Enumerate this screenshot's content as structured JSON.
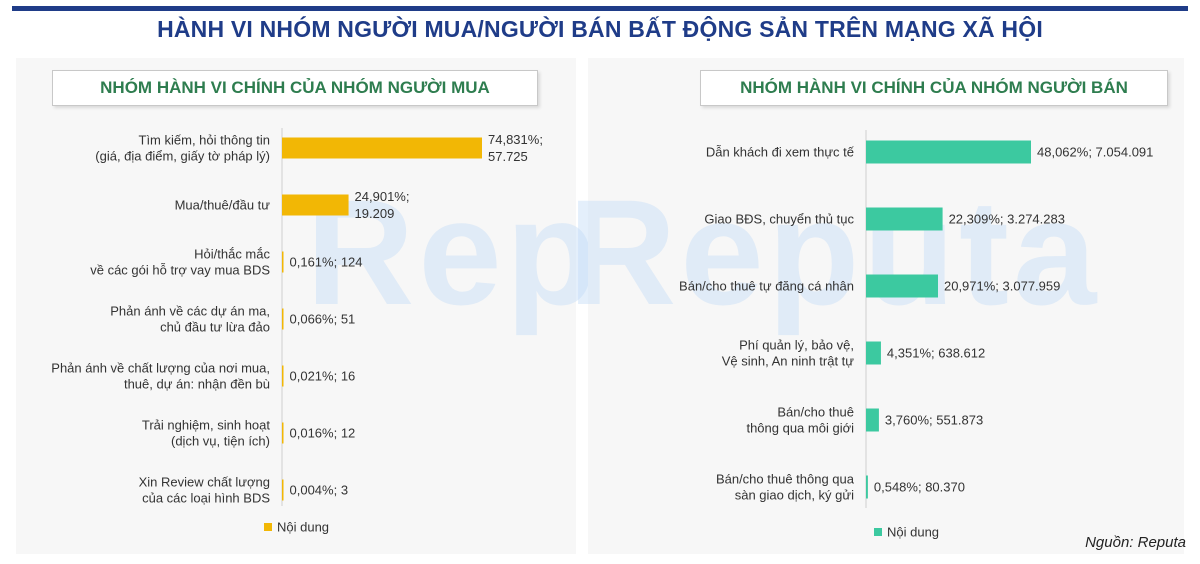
{
  "header": {
    "title": "HÀNH VI NHÓM NGƯỜI MUA/NGƯỜI BÁN BẤT ĐỘNG SẢN TRÊN MẠNG XÃ HỘI",
    "accent_color": "#1f3c88"
  },
  "watermark": "Reputa",
  "source": "Nguồn: Reputa",
  "chart_data": [
    {
      "type": "bar",
      "orientation": "horizontal",
      "title": "NHÓM HÀNH VI CHÍNH CỦA NHÓM NGƯỜI MUA",
      "color": "#f2b705",
      "legend": {
        "label": "Nội dung",
        "position": "bottom-left"
      },
      "categories": [
        [
          "Tìm kiếm, hỏi thông tin",
          "(giá, địa điểm, giấy tờ pháp lý)"
        ],
        [
          "Mua/thuê/đầu tư"
        ],
        [
          "Hỏi/thắc mắc",
          "về các gói hỗ trợ vay mua BDS"
        ],
        [
          "Phản ánh về các dự án ma,",
          "chủ đầu tư lừa đảo"
        ],
        [
          "Phản ánh về chất lượng của nơi mua,",
          "thuê, dự án: nhận đền bù"
        ],
        [
          "Trải nghiệm, sinh hoạt",
          "(dịch vụ, tiện ích)"
        ],
        [
          "Xin Review chất lượng",
          "của các loại hình BDS"
        ]
      ],
      "values": [
        74.831,
        24.901,
        0.161,
        0.066,
        0.021,
        0.016,
        0.004
      ],
      "counts": [
        57725,
        19209,
        124,
        51,
        16,
        12,
        3
      ],
      "data_labels": [
        [
          "74,831%;",
          "57.725"
        ],
        [
          "24,901%;",
          "19.209"
        ],
        [
          "0,161%;  124"
        ],
        [
          "0,066%;  51"
        ],
        [
          "0,021%;  16"
        ],
        [
          "0,016%;  12"
        ],
        [
          "0,004%;  3"
        ]
      ]
    },
    {
      "type": "bar",
      "orientation": "horizontal",
      "title": "NHÓM HÀNH VI CHÍNH CỦA NHÓM NGƯỜI BÁN",
      "color": "#3cc9a0",
      "legend": {
        "label": "Nội dung",
        "position": "bottom-left"
      },
      "categories": [
        [
          "Dẫn khách đi xem thực tế"
        ],
        [
          "Giao BĐS, chuyển thủ tục"
        ],
        [
          "Bán/cho thuê tự đăng cá nhân"
        ],
        [
          "Phí quản lý, bảo vệ,",
          "Vệ sinh, An ninh trật tự"
        ],
        [
          "Bán/cho thuê",
          "thông qua môi giới"
        ],
        [
          "Bán/cho thuê thông qua",
          "sàn giao dịch, ký gửi"
        ]
      ],
      "values": [
        48.062,
        22.309,
        20.971,
        4.351,
        3.76,
        0.548
      ],
      "counts": [
        7054091,
        3274283,
        3077959,
        638612,
        551873,
        80370
      ],
      "data_labels": [
        [
          "48,062%;  7.054.091"
        ],
        [
          "22,309%;  3.274.283"
        ],
        [
          "20,971%;  3.077.959"
        ],
        [
          "4,351%;  638.612"
        ],
        [
          "3,760%;  551.873"
        ],
        [
          "0,548%;  80.370"
        ]
      ]
    }
  ]
}
